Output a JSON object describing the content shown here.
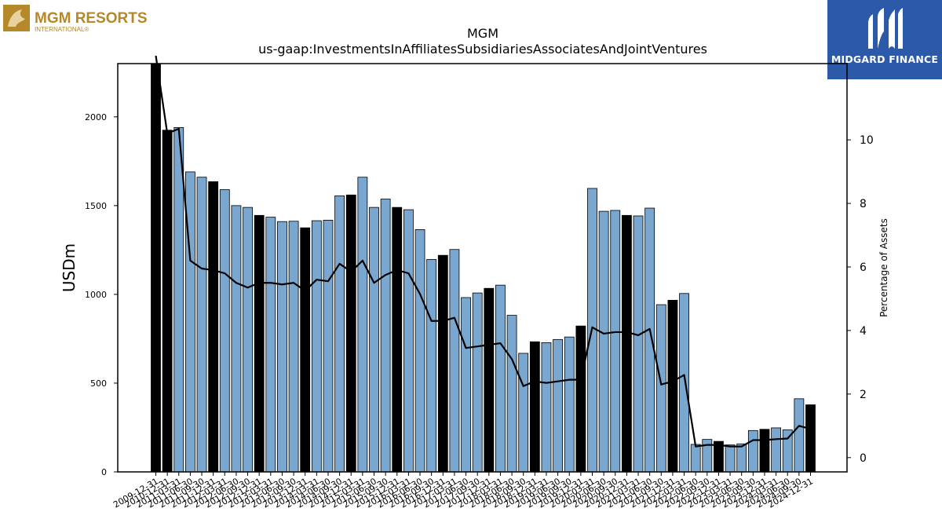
{
  "branding": {
    "left_logo_name": "MGM RESORTS",
    "left_logo_sub": "INTERNATIONAL®",
    "right_logo_name": "MIDGARD FINANCE",
    "left_logo_color": "#b5882a",
    "right_logo_bg": "#2c5aa8"
  },
  "chart_data": {
    "type": "bar",
    "title": "MGM",
    "subtitle": "us-gaap:InvestmentsInAffiliatesSubsidiariesAssociatesAndJointVentures",
    "ylabel": "USDm",
    "y2label": "Percentage of Assets",
    "ylim": [
      0,
      2300
    ],
    "y2lim": [
      -0.45,
      12.4
    ],
    "yticks": [
      0,
      500,
      1000,
      1500,
      2000
    ],
    "y2ticks": [
      0,
      2,
      4,
      6,
      8,
      10
    ],
    "categories": [
      "2009-12-31",
      "2010-12-31",
      "2011-03-31",
      "2011-06-30",
      "2011-09-30",
      "2011-12-31",
      "2012-03-31",
      "2012-06-30",
      "2012-09-30",
      "2012-12-31",
      "2013-03-31",
      "2013-06-30",
      "2013-09-30",
      "2013-12-31",
      "2014-03-31",
      "2014-06-30",
      "2014-09-30",
      "2014-12-31",
      "2015-03-31",
      "2015-06-30",
      "2015-09-30",
      "2015-12-31",
      "2016-03-31",
      "2016-06-30",
      "2016-09-30",
      "2016-12-31",
      "2017-03-31",
      "2017-06-30",
      "2017-09-30",
      "2017-12-31",
      "2018-03-31",
      "2018-06-30",
      "2018-09-30",
      "2018-12-31",
      "2019-03-31",
      "2019-06-30",
      "2019-09-30",
      "2019-12-31",
      "2020-03-31",
      "2020-06-30",
      "2020-09-30",
      "2020-12-31",
      "2021-03-31",
      "2021-06-30",
      "2021-09-30",
      "2021-12-31",
      "2022-03-31",
      "2022-06-30",
      "2022-09-30",
      "2022-12-31",
      "2023-03-31",
      "2023-06-30",
      "2023-09-30",
      "2023-12-31",
      "2024-03-31",
      "2024-06-30",
      "2024-09-30",
      "2024-12-31"
    ],
    "values": [
      2300,
      1925,
      1940,
      1690,
      1660,
      1635,
      1590,
      1500,
      1490,
      1445,
      1435,
      1410,
      1412,
      1375,
      1415,
      1418,
      1555,
      1560,
      1660,
      1490,
      1537,
      1490,
      1477,
      1365,
      1197,
      1220,
      1253,
      982,
      1008,
      1034,
      1052,
      882,
      668,
      733,
      728,
      746,
      760,
      822,
      1597,
      1468,
      1473,
      1445,
      1442,
      1486,
      942,
      967,
      1005,
      155,
      183,
      172,
      152,
      158,
      233,
      240,
      248,
      237,
      412,
      378
    ],
    "highlight": [
      true,
      true,
      false,
      false,
      false,
      true,
      false,
      false,
      false,
      true,
      false,
      false,
      false,
      true,
      false,
      false,
      false,
      true,
      false,
      false,
      false,
      true,
      false,
      false,
      false,
      true,
      false,
      false,
      false,
      true,
      false,
      false,
      false,
      true,
      false,
      false,
      false,
      true,
      false,
      false,
      false,
      true,
      false,
      false,
      false,
      true,
      false,
      false,
      false,
      true,
      false,
      false,
      false,
      true,
      false,
      false,
      false,
      true
    ],
    "pct_series": {
      "name": "Percentage of Assets",
      "values": [
        13.2,
        10.2,
        10.35,
        6.2,
        5.95,
        5.9,
        5.8,
        5.5,
        5.35,
        5.5,
        5.5,
        5.45,
        5.5,
        5.25,
        5.6,
        5.55,
        6.1,
        5.85,
        6.2,
        5.5,
        5.75,
        5.9,
        5.8,
        5.15,
        4.3,
        4.3,
        4.4,
        3.45,
        3.5,
        3.55,
        3.6,
        3.1,
        2.25,
        2.4,
        2.35,
        2.4,
        2.45,
        2.45,
        4.1,
        3.9,
        3.95,
        3.95,
        3.85,
        4.05,
        2.3,
        2.4,
        2.6,
        0.35,
        0.4,
        0.4,
        0.35,
        0.35,
        0.55,
        0.55,
        0.58,
        0.6,
        1.0,
        0.9
      ]
    },
    "colors": {
      "bar": "#7aa7cf",
      "bar_highlight": "#000000",
      "line": "#000000"
    },
    "grid": false
  }
}
